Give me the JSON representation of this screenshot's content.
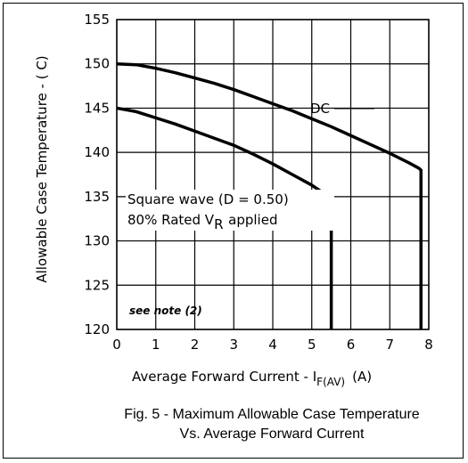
{
  "chart_data": {
    "type": "line",
    "title": "",
    "caption_line1": "Fig. 5 - Maximum Allowable Case Temperature",
    "caption_line2": "Vs. Average Forward Current",
    "xlabel": {
      "prefix": "Average Forward Current - I",
      "subscript": "F(AV)",
      "suffix": "(A)"
    },
    "ylabel": "Allowable Case Temperature - ( C)",
    "xlim": [
      0,
      8
    ],
    "ylim": [
      120,
      155
    ],
    "xticks": [
      0,
      1,
      2,
      3,
      4,
      5,
      6,
      7,
      8
    ],
    "yticks": [
      120,
      125,
      130,
      135,
      140,
      145,
      150,
      155
    ],
    "grid": true,
    "series": [
      {
        "name": "DC",
        "points": [
          [
            0,
            150
          ],
          [
            0.5,
            149.9
          ],
          [
            1,
            149.5
          ],
          [
            1.5,
            149.0
          ],
          [
            2,
            148.4
          ],
          [
            2.5,
            147.8
          ],
          [
            3,
            147.1
          ],
          [
            3.5,
            146.3
          ],
          [
            4,
            145.5
          ],
          [
            4.5,
            144.7
          ],
          [
            5,
            143.8
          ],
          [
            5.5,
            142.9
          ],
          [
            6,
            141.9
          ],
          [
            6.5,
            140.9
          ],
          [
            7,
            139.9
          ],
          [
            7.5,
            138.8
          ],
          [
            7.75,
            138.2
          ],
          [
            7.8,
            138
          ],
          [
            7.8,
            120
          ]
        ]
      },
      {
        "name": "Square wave (D = 0.50)",
        "points": [
          [
            0,
            145
          ],
          [
            0.5,
            144.6
          ],
          [
            1,
            143.9
          ],
          [
            1.5,
            143.2
          ],
          [
            2,
            142.4
          ],
          [
            2.5,
            141.6
          ],
          [
            3,
            140.8
          ],
          [
            3.5,
            139.8
          ],
          [
            4,
            138.7
          ],
          [
            4.5,
            137.5
          ],
          [
            5,
            136.3
          ],
          [
            5.4,
            135.1
          ],
          [
            5.5,
            135
          ],
          [
            5.5,
            120
          ]
        ]
      }
    ],
    "annotations": {
      "dc_label": "DC",
      "square_line1": "Square wave (D = 0.50)",
      "square_line2_prefix": "80% Rated V",
      "square_line2_sub": "R",
      "square_line2_suffix": "applied",
      "note": "see note (2)"
    }
  }
}
